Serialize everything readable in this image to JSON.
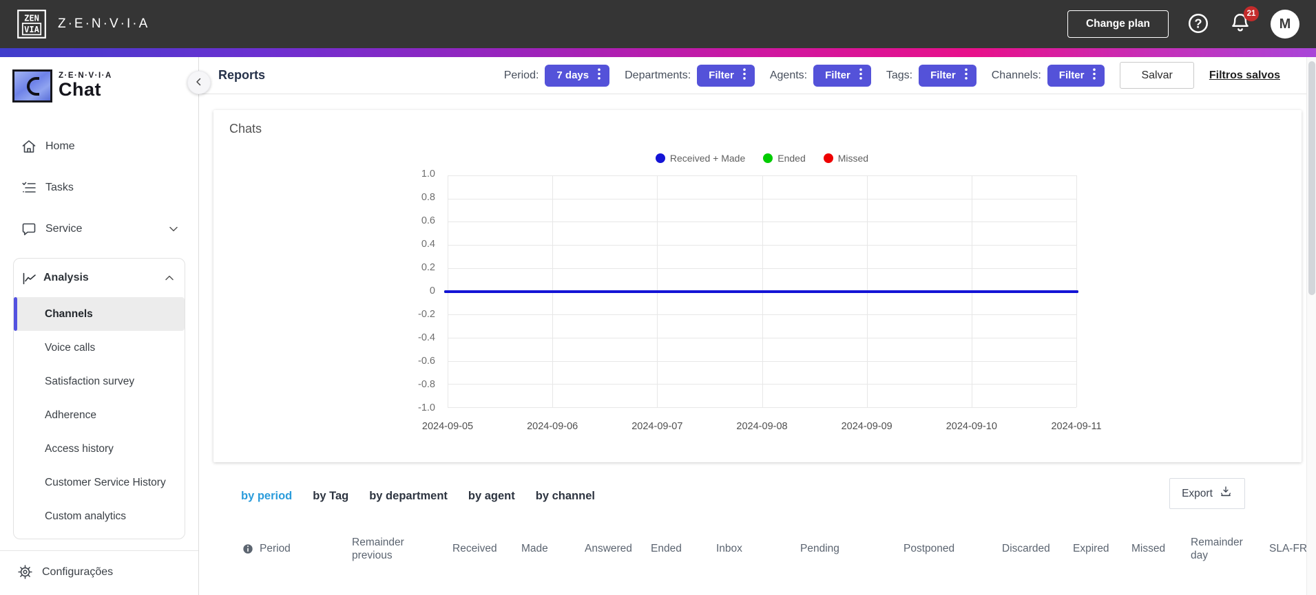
{
  "topbar": {
    "brand": "Z·E·N·V·I·A",
    "change_plan_label": "Change plan",
    "notification_count": "21",
    "avatar_initial": "M"
  },
  "sidebar": {
    "logo_brand": "Z·E·N·V·I·A",
    "logo_product": "Chat",
    "nav": [
      {
        "label": "Home"
      },
      {
        "label": "Tasks"
      },
      {
        "label": "Service"
      }
    ],
    "analysis_label": "Analysis",
    "analysis_items": [
      {
        "label": "Channels",
        "active": true
      },
      {
        "label": "Voice calls",
        "active": false
      },
      {
        "label": "Satisfaction survey",
        "active": false
      },
      {
        "label": "Adherence",
        "active": false
      },
      {
        "label": "Access history",
        "active": false
      },
      {
        "label": "Customer Service History",
        "active": false
      },
      {
        "label": "Custom analytics",
        "active": false
      }
    ],
    "settings_label": "Configurações"
  },
  "header": {
    "title": "Reports",
    "filters": [
      {
        "label": "Period:",
        "button": "7 days"
      },
      {
        "label": "Departments:",
        "button": "Filter"
      },
      {
        "label": "Agents:",
        "button": "Filter"
      },
      {
        "label": "Tags:",
        "button": "Filter"
      },
      {
        "label": "Channels:",
        "button": "Filter"
      }
    ],
    "save_label": "Salvar",
    "saved_filters_label": "Filtros salvos"
  },
  "chart_card": {
    "title": "Chats"
  },
  "chart_data": {
    "type": "line",
    "title": "Chats",
    "x": [
      "2024-09-05",
      "2024-09-06",
      "2024-09-07",
      "2024-09-08",
      "2024-09-09",
      "2024-09-10",
      "2024-09-11"
    ],
    "yticks": [
      "1.0",
      "0.8",
      "0.6",
      "0.4",
      "0.2",
      "0",
      "-0.2",
      "-0.4",
      "-0.6",
      "-0.8",
      "-1.0"
    ],
    "ylim": [
      -1.0,
      1.0
    ],
    "grid": true,
    "legend_position": "top",
    "series": [
      {
        "name": "Received + Made",
        "color": "#1414d6",
        "values": [
          0,
          0,
          0,
          0,
          0,
          0,
          0
        ]
      },
      {
        "name": "Ended",
        "color": "#00cc00",
        "values": [
          0,
          0,
          0,
          0,
          0,
          0,
          0
        ]
      },
      {
        "name": "Missed",
        "color": "#ee0000",
        "values": [
          0,
          0,
          0,
          0,
          0,
          0,
          0
        ]
      }
    ]
  },
  "tabs": [
    {
      "label": "by period",
      "active": true
    },
    {
      "label": "by Tag",
      "active": false
    },
    {
      "label": "by department",
      "active": false
    },
    {
      "label": "by agent",
      "active": false
    },
    {
      "label": "by channel",
      "active": false
    }
  ],
  "export_label": "Export",
  "table": {
    "columns": [
      "Period",
      "Remainder previous",
      "Received",
      "Made",
      "Answered",
      "Ended",
      "Inbox",
      "Pending",
      "Postponed",
      "Discarded",
      "Expired",
      "Missed",
      "Remainder day",
      "SLA-FR"
    ]
  }
}
